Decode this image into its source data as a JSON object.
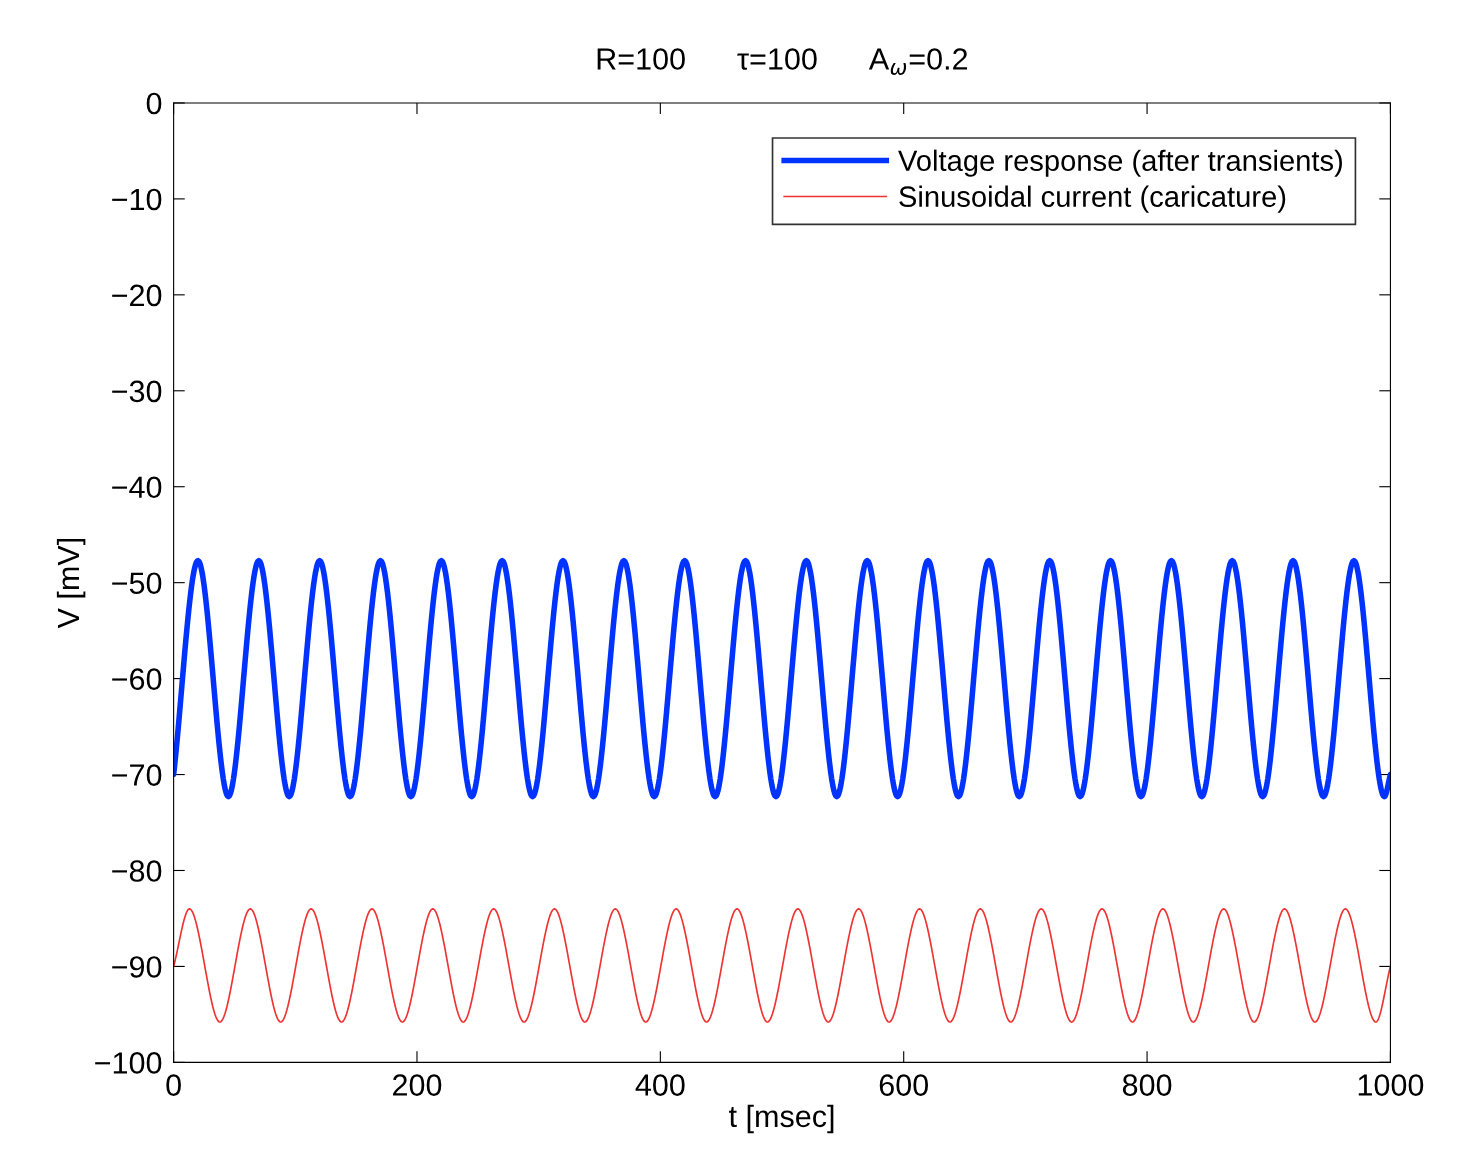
{
  "chart_data": {
    "type": "line",
    "title": "R=100      τ=100      A$_{ω}$=0.2",
    "xlabel": "t [msec]",
    "ylabel": "V [mV]",
    "xlim": [
      0,
      1000
    ],
    "xticks": [
      0,
      200,
      400,
      600,
      800,
      1000
    ],
    "ylim": [
      -100,
      0
    ],
    "yticks": [
      0,
      {
        "value": -10,
        "label": "−10"
      },
      {
        "value": -20,
        "label": "−20"
      },
      {
        "value": -30,
        "label": "−30"
      },
      {
        "value": -40,
        "label": "−40"
      },
      {
        "value": -50,
        "label": "−50"
      },
      {
        "value": -60,
        "label": "−60"
      },
      {
        "value": -70,
        "label": "−70"
      },
      {
        "value": -80,
        "label": "−80"
      },
      {
        "value": -90,
        "label": "−90"
      },
      {
        "value": -100,
        "label": "−100"
      }
    ],
    "grid": false,
    "legend": "top right",
    "series": [
      {
        "name": "Voltage response (after transients)",
        "color": "#0033ff",
        "x": [
          0,
          20,
          45,
          70,
          95,
          120,
          145,
          170,
          195,
          220,
          245,
          270,
          295,
          320,
          345,
          370,
          395,
          420,
          445,
          470,
          495,
          520,
          545,
          570,
          595,
          620,
          645,
          670,
          695,
          720,
          745,
          770,
          795,
          820,
          845,
          870,
          895,
          920,
          945,
          970,
          995,
          1000
        ],
        "values": [
          -70,
          -47.7,
          -72.3,
          -47.7,
          -72.3,
          -47.7,
          -72.3,
          -47.7,
          -72.3,
          -47.7,
          -72.3,
          -47.7,
          -72.3,
          -47.7,
          -72.3,
          -47.7,
          -72.3,
          -47.7,
          -72.3,
          -47.7,
          -72.3,
          -47.7,
          -72.3,
          -47.7,
          -72.3,
          -47.7,
          -72.3,
          -47.7,
          -72.3,
          -47.7,
          -72.3,
          -47.7,
          -72.3,
          -47.7,
          -72.3,
          -47.7,
          -72.3,
          -47.7,
          -72.3,
          -47.7,
          -72.3,
          -70
        ]
      },
      {
        "name": "Sinusoidal current (caricature)",
        "color": "#ee3333",
        "x": [
          0,
          13,
          38,
          63,
          88,
          113,
          138,
          163,
          188,
          213,
          238,
          263,
          288,
          313,
          338,
          363,
          388,
          413,
          438,
          463,
          488,
          513,
          538,
          563,
          588,
          613,
          638,
          663,
          688,
          713,
          738,
          763,
          788,
          813,
          838,
          863,
          888,
          913,
          938,
          963,
          988,
          1000
        ],
        "values": [
          -90,
          -84,
          -95.8,
          -84,
          -95.8,
          -84,
          -95.8,
          -84,
          -95.8,
          -84,
          -95.8,
          -84,
          -95.8,
          -84,
          -95.8,
          -84,
          -95.8,
          -84,
          -95.8,
          -84,
          -95.8,
          -84,
          -95.8,
          -84,
          -95.8,
          -84,
          -95.8,
          -84,
          -95.8,
          -84,
          -95.8,
          -84,
          -95.8,
          -84,
          -95.8,
          -84,
          -95.8,
          -84,
          -95.8,
          -84,
          -95.8,
          -90
        ]
      }
    ]
  }
}
